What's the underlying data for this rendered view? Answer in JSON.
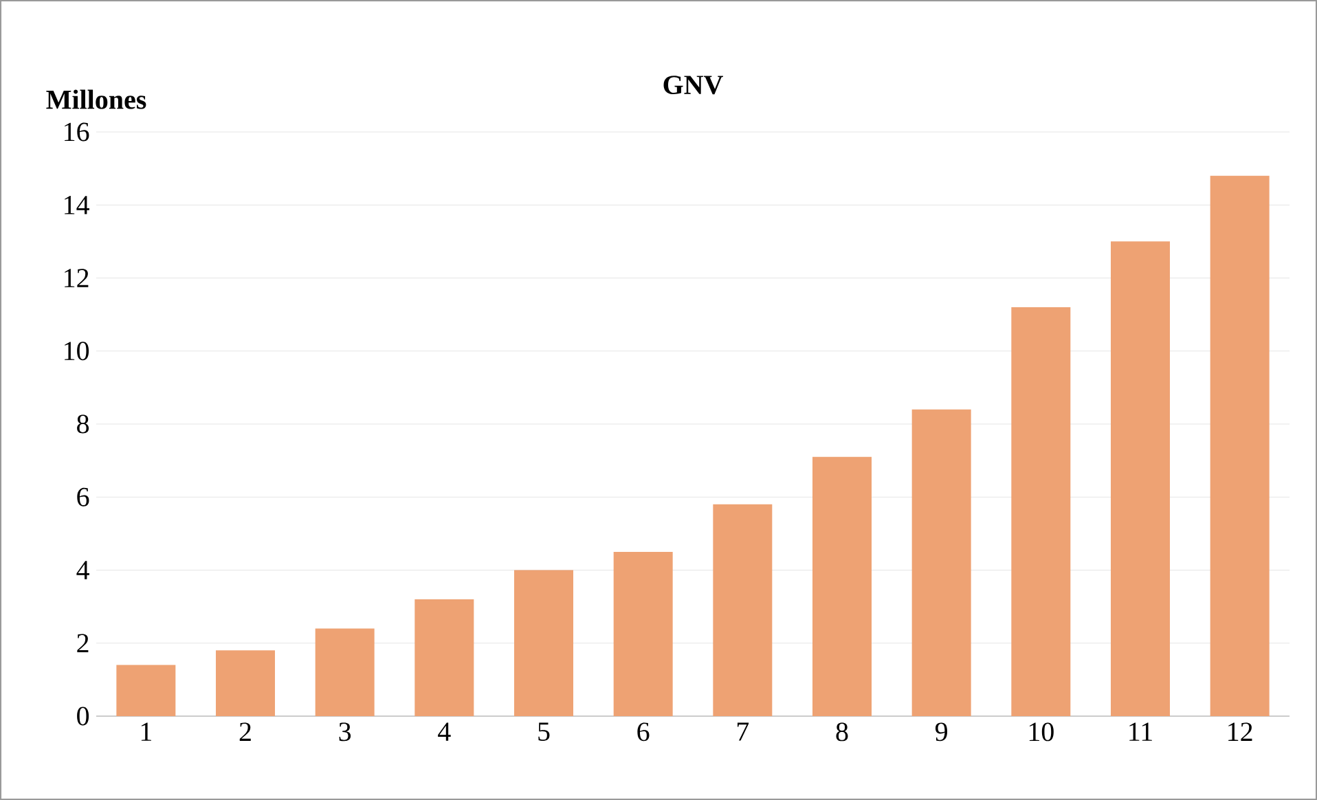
{
  "chart_data": {
    "type": "bar",
    "title": "GNV",
    "ylabel": "Millones",
    "categories": [
      "1",
      "2",
      "3",
      "4",
      "5",
      "6",
      "7",
      "8",
      "9",
      "10",
      "11",
      "12"
    ],
    "values": [
      1.4,
      1.8,
      2.4,
      3.2,
      4.0,
      4.5,
      5.8,
      7.1,
      8.4,
      11.2,
      13.0,
      14.8
    ],
    "color": "#eea273",
    "ylim": [
      0,
      16
    ],
    "yticks": [
      0,
      2,
      4,
      6,
      8,
      10,
      12,
      14,
      16
    ],
    "grid": "y"
  }
}
